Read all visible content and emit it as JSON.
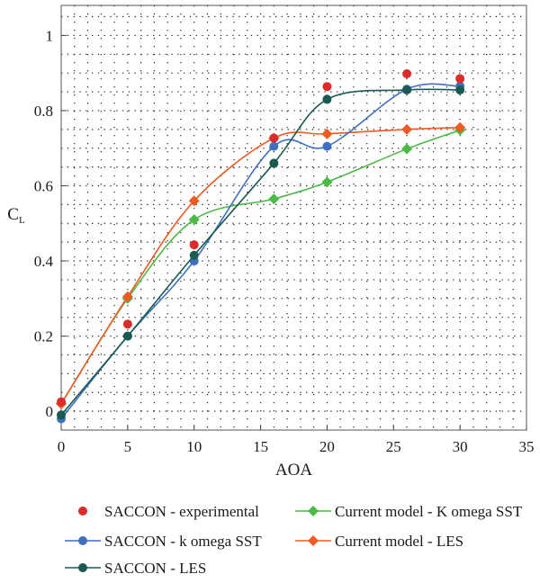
{
  "chart_data": {
    "type": "line",
    "xlabel": "AOA",
    "ylabel": "C",
    "ylabel_subscript": "L",
    "xlim": [
      0,
      35
    ],
    "ylim": [
      -0.05,
      1.08
    ],
    "xticks": [
      "0",
      "5",
      "10",
      "15",
      "20",
      "25",
      "30",
      "35"
    ],
    "yticks": [
      "0",
      "0.2",
      "0.4",
      "0.6",
      "0.8",
      "1"
    ],
    "grid": "dotted",
    "legend_position": "bottom",
    "series": [
      {
        "name": "SACCON - experimental",
        "color": "#dd2a2a",
        "marker": "circle",
        "line": false,
        "x": [
          0,
          5,
          10,
          16,
          20,
          26,
          30
        ],
        "y": [
          0.025,
          0.232,
          0.443,
          0.727,
          0.864,
          0.898,
          0.885
        ]
      },
      {
        "name": "SACCON - k omega SST",
        "color": "#3f6fc0",
        "marker": "circle",
        "line": true,
        "x": [
          0,
          5,
          10,
          16,
          20,
          26,
          30
        ],
        "y": [
          -0.02,
          0.2,
          0.4,
          0.705,
          0.705,
          0.857,
          0.865
        ]
      },
      {
        "name": "SACCON - LES",
        "color": "#1a5a52",
        "marker": "circle",
        "line": true,
        "x": [
          0,
          5,
          10,
          16,
          20,
          26,
          30
        ],
        "y": [
          -0.01,
          0.2,
          0.415,
          0.66,
          0.83,
          0.855,
          0.855
        ]
      },
      {
        "name": "Current model - K omega SST",
        "color": "#4cba46",
        "marker": "diamond",
        "line": true,
        "x": [
          0,
          5,
          10,
          16,
          20,
          26,
          30
        ],
        "y": [
          0.02,
          0.3,
          0.51,
          0.565,
          0.61,
          0.698,
          0.748
        ]
      },
      {
        "name": "Current model - LES",
        "color": "#ef5a22",
        "marker": "diamond",
        "line": true,
        "x": [
          0,
          5,
          10,
          16,
          20,
          26,
          30
        ],
        "y": [
          0.02,
          0.305,
          0.56,
          0.727,
          0.738,
          0.75,
          0.755
        ]
      }
    ],
    "legend_order": [
      0,
      3,
      1,
      4,
      2
    ]
  }
}
